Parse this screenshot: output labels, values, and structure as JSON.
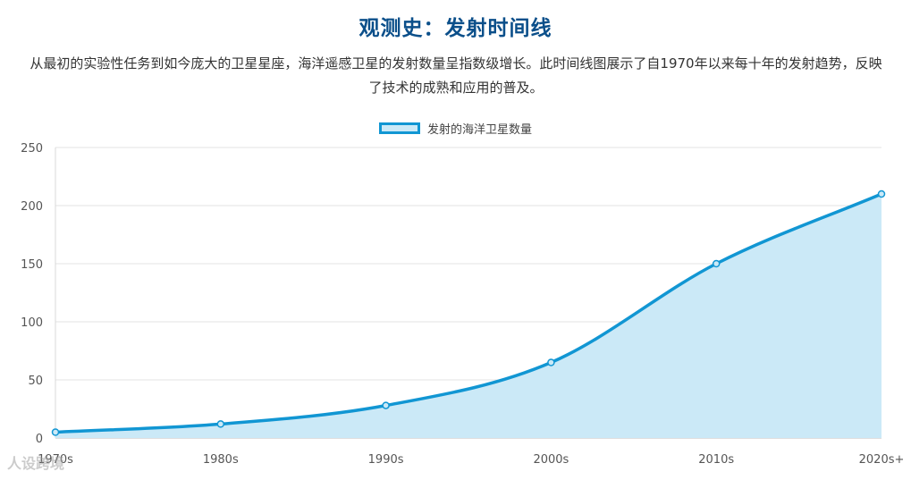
{
  "watermark": "人设跨境",
  "chart_data": {
    "type": "area",
    "title": "观测史：发射时间线",
    "subtitle": "从最初的实验性任务到如今庞大的卫星星座，海洋遥感卫星的发射数量呈指数级增长。此时间线图展示了自1970年以来每十年的发射趋势，反映了技术的成熟和应用的普及。",
    "categories": [
      "1970s",
      "1980s",
      "1990s",
      "2000s",
      "2010s",
      "2020s+"
    ],
    "series": [
      {
        "name": "发射的海洋卫星数量",
        "values": [
          5,
          12,
          28,
          65,
          150,
          210
        ]
      }
    ],
    "ylim": [
      0,
      250
    ],
    "yticks": [
      0,
      50,
      100,
      150,
      200,
      250
    ],
    "xlabel": "",
    "ylabel": "",
    "grid": true,
    "legend_position": "top-center",
    "colors": {
      "line": "#1196d3",
      "fill": "#cbe9f7",
      "title": "#0b4f8a",
      "grid": "#e3e3e3"
    }
  }
}
